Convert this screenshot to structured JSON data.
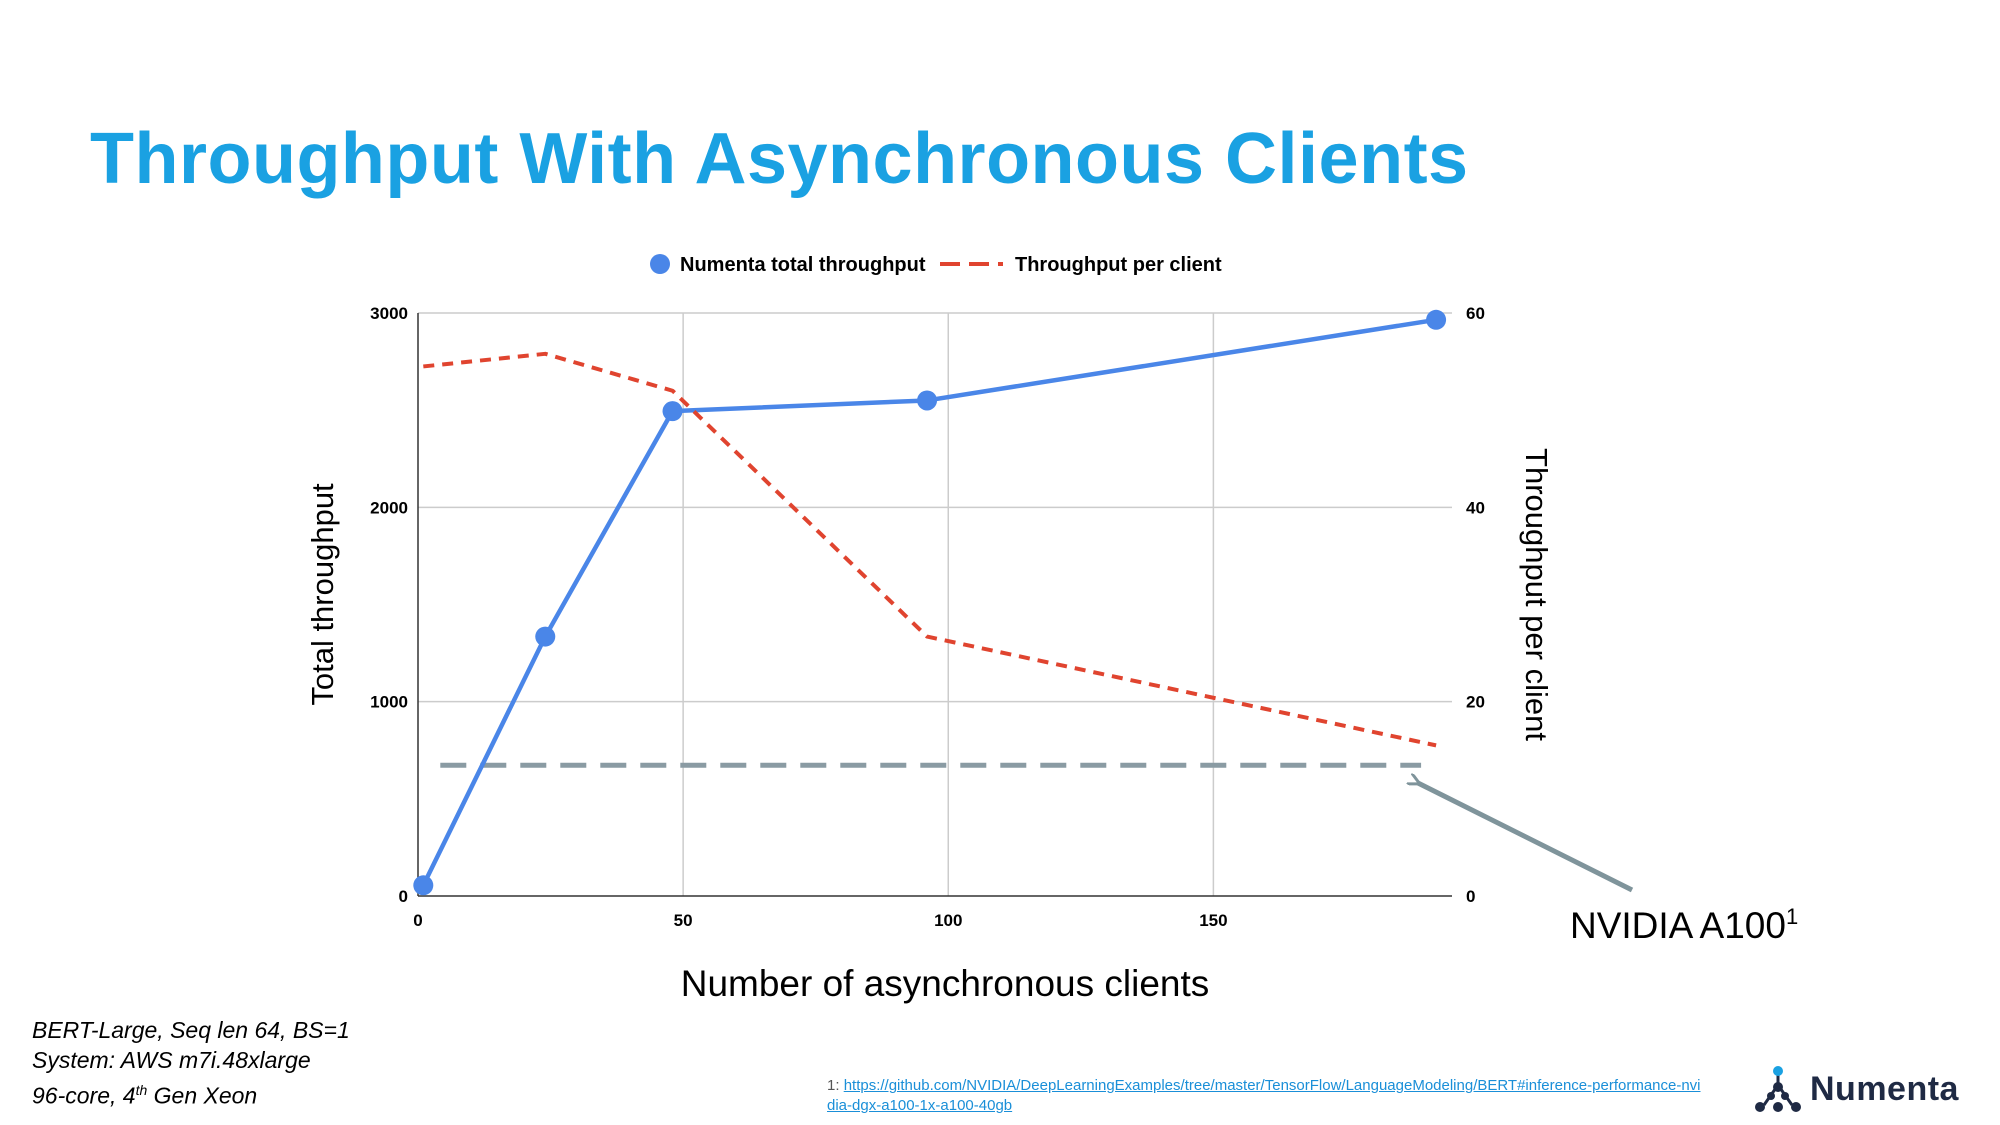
{
  "slide": {
    "title": "Throughput With Asynchronous Clients",
    "notes": {
      "line1": "BERT-Large, Seq len 64, BS=1",
      "line2": "System: AWS m7i.48xlarge",
      "line3_prefix": "96-core, 4",
      "line3_sup": "th",
      "line3_suffix": " Gen Xeon"
    },
    "footnote": {
      "marker": "1: ",
      "link": "https://github.com/NVIDIA/DeepLearningExamples/tree/master/TensorFlow/LanguageModeling/BERT#inference-performance-nvidia-dgx-a100-1x-a100-40gb"
    },
    "logo": {
      "text": "Numenta",
      "icon": "numenta-network-icon"
    }
  },
  "chart_data": {
    "type": "line",
    "xlabel": "Number of asynchronous clients",
    "ylabel_left": "Total throughput",
    "ylabel_right": "Throughput per client",
    "xlim": [
      0,
      195
    ],
    "ylim_left": [
      0,
      3000
    ],
    "ylim_right": [
      0,
      60
    ],
    "x_ticks": [
      0,
      50,
      100,
      150
    ],
    "y_ticks_left": [
      0,
      1000,
      2000,
      3000
    ],
    "y_ticks_right": [
      0,
      20,
      40,
      60
    ],
    "grid": true,
    "legend_position": "top",
    "series": [
      {
        "name": "Numenta total throughput",
        "axis": "left",
        "style": "solid-with-markers",
        "color": "#4a86e8",
        "x": [
          1,
          24,
          48,
          96,
          192
        ],
        "y": [
          55,
          1335,
          2495,
          2550,
          2965
        ]
      },
      {
        "name": "Throughput per client",
        "axis": "right",
        "style": "dashed",
        "color": "#e0442f",
        "x": [
          1,
          24,
          48,
          96,
          192
        ],
        "y": [
          54.5,
          55.8,
          52,
          26.7,
          15.5
        ]
      }
    ],
    "reference_line": {
      "label": "NVIDIA A100",
      "label_sup": "1",
      "axis": "left",
      "y": 673,
      "x_range": [
        1,
        192
      ],
      "color": "#8a9ba3"
    }
  }
}
